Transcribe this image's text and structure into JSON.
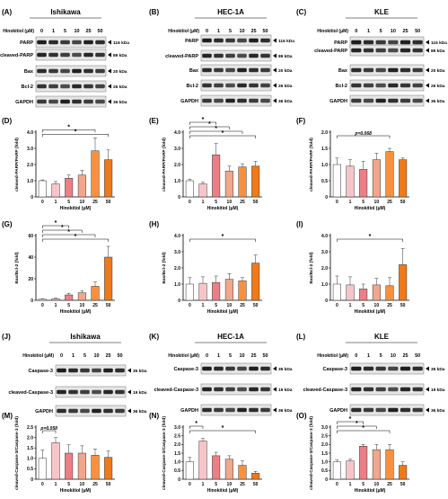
{
  "blot_panels": [
    {
      "letter": "(A)",
      "cell": "Ishikawa",
      "treatment_label": "Hinokitiol (μM)",
      "doses": [
        "0",
        "1",
        "5",
        "10",
        "25",
        "50"
      ],
      "rows": [
        {
          "label": "PARP",
          "size": "116 kDa"
        },
        {
          "label": "cleaved-PARP",
          "size": "89 kDa"
        },
        {
          "label": "Bax",
          "size": "20 kDa"
        },
        {
          "label": "Bcl-2",
          "size": "26 kDa"
        },
        {
          "label": "GAPDH",
          "size": "36 kDa"
        }
      ]
    },
    {
      "letter": "(B)",
      "cell": "HEC-1A",
      "treatment_label": "Hinokitiol (μM)",
      "doses": [
        "0",
        "1",
        "5",
        "10",
        "25",
        "50"
      ],
      "rows": [
        {
          "label": "PARP",
          "size": "116 kDa"
        },
        {
          "label": "cleaved-PARP",
          "size": "89 kDa"
        },
        {
          "label": "Bax",
          "size": "20 kDa"
        },
        {
          "label": "Bcl-2",
          "size": "26 kDa"
        },
        {
          "label": "GAPDH",
          "size": "36 kDa"
        }
      ]
    },
    {
      "letter": "(C)",
      "cell": "KLE",
      "treatment_label": "Hinokitiol (μM)",
      "doses": [
        "0",
        "1",
        "5",
        "10",
        "25",
        "50"
      ],
      "rows": [
        {
          "label": "PARP",
          "size": "116 kDa"
        },
        {
          "label": "cleaved-PARP",
          "size": "89 kDa"
        },
        {
          "label": "Bax",
          "size": "20 kDa"
        },
        {
          "label": "Bcl-2",
          "size": "26 kDa"
        },
        {
          "label": "GAPDH",
          "size": "36 kDa"
        }
      ]
    },
    {
      "letter": "(J)",
      "cell": "Ishikawa",
      "treatment_label": "Hinokitiol (μM)",
      "doses": [
        "0",
        "1",
        "5",
        "10",
        "25",
        "50"
      ],
      "rows": [
        {
          "label": "Caspase-3",
          "size": "35 kDa"
        },
        {
          "label": "cleaved-Caspase-3",
          "size": "19 kDa"
        },
        {
          "label": "GAPDH",
          "size": "36 kDa"
        }
      ]
    },
    {
      "letter": "(K)",
      "cell": "HEC-1A",
      "treatment_label": "Hinokitiol (μM)",
      "doses": [
        "0",
        "1",
        "5",
        "10",
        "25",
        "50"
      ],
      "rows": [
        {
          "label": "Caspase-3",
          "size": "35 kDa"
        },
        {
          "label": "cleaved-Caspase-3",
          "size": "19 kDa"
        },
        {
          "label": "GAPDH",
          "size": "36 kDa"
        }
      ]
    },
    {
      "letter": "(L)",
      "cell": "KLE",
      "treatment_label": "Hinokitiol (μM)",
      "doses": [
        "0",
        "1",
        "5",
        "10",
        "25",
        "50"
      ],
      "rows": [
        {
          "label": "Caspase-3",
          "size": "35 kDa"
        },
        {
          "label": "cleaved-Caspase-3",
          "size": "19 kDa"
        },
        {
          "label": "GAPDH",
          "size": "36 kDa"
        }
      ]
    }
  ],
  "colors": {
    "bars": [
      "#ffffff",
      "#f7c5c8",
      "#ec7f86",
      "#f2a68c",
      "#f7913f",
      "#ef7a1a"
    ],
    "axis": "#000000",
    "text": "#000000"
  },
  "chart_data": [
    {
      "letter": "(D)",
      "type": "bar",
      "ylabel": "cleaved-PARP/PARP (fold)",
      "xlabel": "Hinokitiol (μM)",
      "categories": [
        "0",
        "1",
        "5",
        "10",
        "25",
        "50"
      ],
      "values": [
        1.0,
        0.8,
        1.15,
        1.35,
        2.85,
        2.3
      ],
      "errors": [
        0.05,
        0.15,
        0.2,
        0.3,
        0.8,
        0.6
      ],
      "ylim": [
        0,
        4
      ],
      "yticks": [
        "0",
        "1.0",
        "2.0",
        "3.0",
        "4.0"
      ],
      "brackets": [
        {
          "from": 0,
          "to": 4,
          "label": "*",
          "level": 1
        },
        {
          "from": 0,
          "to": 5,
          "label": "*",
          "level": 2
        }
      ]
    },
    {
      "letter": "(E)",
      "type": "bar",
      "ylabel": "cleaved-PARP/PARP (fold)",
      "xlabel": "Hinokitiol (μM)",
      "categories": [
        "0",
        "1",
        "5",
        "10",
        "25",
        "50"
      ],
      "values": [
        1.0,
        0.8,
        2.6,
        1.6,
        1.85,
        1.9
      ],
      "errors": [
        0.1,
        0.1,
        0.7,
        0.3,
        0.2,
        0.3
      ],
      "ylim": [
        0,
        4
      ],
      "yticks": [
        "0",
        "1.0",
        "2.0",
        "3.0",
        "4.0"
      ],
      "brackets": [
        {
          "from": 0,
          "to": 2,
          "label": "*",
          "level": 1
        },
        {
          "from": 0,
          "to": 3,
          "label": "*",
          "level": 2
        },
        {
          "from": 0,
          "to": 4,
          "label": "*",
          "level": 3
        },
        {
          "from": 0,
          "to": 5,
          "label": "*",
          "level": 4
        }
      ]
    },
    {
      "letter": "(F)",
      "type": "bar",
      "ylabel": "cleaved-PARP/PARP (fold)",
      "xlabel": "Hinokitiol (μM)",
      "categories": [
        "0",
        "1",
        "5",
        "10",
        "25",
        "50"
      ],
      "values": [
        1.0,
        0.95,
        0.85,
        1.15,
        1.4,
        1.15
      ],
      "errors": [
        0.2,
        0.2,
        0.25,
        0.2,
        0.1,
        0.05
      ],
      "ylim": [
        0,
        2
      ],
      "yticks": [
        "0",
        "0.5",
        "1.0",
        "1.5",
        "2.0"
      ],
      "brackets": [
        {
          "from": 0,
          "to": 4,
          "label": "p=0.068",
          "level": 1
        }
      ]
    },
    {
      "letter": "(G)",
      "type": "bar",
      "ylabel": "Bax/Bcl-2 (fold)",
      "xlabel": "Hinokitiol (μM)",
      "categories": [
        "0",
        "1",
        "5",
        "10",
        "25",
        "50"
      ],
      "values": [
        1.0,
        1.5,
        5.0,
        7.0,
        13.0,
        40.0
      ],
      "errors": [
        0.3,
        0.5,
        1.5,
        2.0,
        4.0,
        10.0
      ],
      "ylim": [
        0,
        60
      ],
      "yticks": [
        "0",
        "20",
        "40",
        "60"
      ],
      "brackets": [
        {
          "from": 0,
          "to": 2,
          "label": "*",
          "level": 1
        },
        {
          "from": 0,
          "to": 3,
          "label": "*",
          "level": 2
        },
        {
          "from": 0,
          "to": 4,
          "label": "*",
          "level": 3
        },
        {
          "from": 0,
          "to": 5,
          "label": "*",
          "level": 4
        }
      ]
    },
    {
      "letter": "(H)",
      "type": "bar",
      "ylabel": "Bax/Bcl-2 (fold)",
      "xlabel": "Hinokitiol (μM)",
      "categories": [
        "0",
        "1",
        "5",
        "10",
        "25",
        "50"
      ],
      "values": [
        1.0,
        1.05,
        1.1,
        1.3,
        1.2,
        2.3
      ],
      "errors": [
        0.4,
        0.4,
        0.4,
        0.35,
        0.2,
        0.5
      ],
      "ylim": [
        0,
        4
      ],
      "yticks": [
        "0",
        "1.0",
        "2.0",
        "3.0",
        "4.0"
      ],
      "brackets": [
        {
          "from": 0,
          "to": 5,
          "label": "*",
          "level": 1
        }
      ]
    },
    {
      "letter": "(I)",
      "type": "bar",
      "ylabel": "Bax/Bcl-2 (fold)",
      "xlabel": "Hinokitiol (μM)",
      "categories": [
        "0",
        "1",
        "5",
        "10",
        "25",
        "50"
      ],
      "values": [
        1.0,
        0.95,
        0.7,
        0.95,
        0.9,
        2.2
      ],
      "errors": [
        0.5,
        0.5,
        0.3,
        0.4,
        0.5,
        1.0
      ],
      "ylim": [
        0,
        4
      ],
      "yticks": [
        "0",
        "1.0",
        "2.0",
        "3.0",
        "4.0"
      ],
      "brackets": [
        {
          "from": 0,
          "to": 5,
          "label": "*",
          "level": 1
        }
      ]
    },
    {
      "letter": "(M)",
      "type": "bar",
      "ylabel": "cleaved-Caspase-3/Caspase-3 (fold)",
      "xlabel": "Hinokitiol (μM)",
      "categories": [
        "0",
        "1",
        "5",
        "10",
        "25",
        "50"
      ],
      "values": [
        1.0,
        1.75,
        1.25,
        1.25,
        1.15,
        1.05
      ],
      "errors": [
        0.4,
        0.25,
        0.4,
        0.35,
        0.3,
        0.3
      ],
      "ylim": [
        0,
        2.5
      ],
      "yticks": [
        "0",
        "0.5",
        "1.0",
        "1.5",
        "2.0",
        "2.5"
      ],
      "brackets": [
        {
          "from": 0,
          "to": 1,
          "label": "p=0.058",
          "level": 1
        }
      ]
    },
    {
      "letter": "(N)",
      "type": "bar",
      "ylabel": "cleaved-Caspase-3/Caspase-3 (fold)",
      "xlabel": "Hinokitiol (μM)",
      "categories": [
        "0",
        "1",
        "5",
        "10",
        "25",
        "50"
      ],
      "values": [
        1.0,
        2.2,
        1.35,
        1.15,
        0.8,
        0.35
      ],
      "errors": [
        0.25,
        0.15,
        0.2,
        0.2,
        0.25,
        0.1
      ],
      "ylim": [
        0,
        3.0
      ],
      "yticks": [
        "0",
        "0.5",
        "1.0",
        "1.5",
        "2.0",
        "2.5",
        "3.0"
      ],
      "brackets": [
        {
          "from": 0,
          "to": 1,
          "label": "*",
          "level": 1
        },
        {
          "from": 0,
          "to": 5,
          "label": "*",
          "level": 2
        }
      ]
    },
    {
      "letter": "(O)",
      "type": "bar",
      "ylabel": "cleaved-Caspase-3/Caspase-3 (fold)",
      "xlabel": "Hinokitiol (μM)",
      "categories": [
        "0",
        "1",
        "5",
        "10",
        "25",
        "50"
      ],
      "values": [
        1.0,
        1.05,
        1.9,
        1.7,
        1.7,
        0.8
      ],
      "errors": [
        0.1,
        0.1,
        0.1,
        0.3,
        0.3,
        0.2
      ],
      "ylim": [
        0,
        3.0
      ],
      "yticks": [
        "0",
        "0.5",
        "1.0",
        "1.5",
        "2.0",
        "2.5",
        "3.0"
      ],
      "brackets": [
        {
          "from": 0,
          "to": 2,
          "label": "*",
          "level": 1
        },
        {
          "from": 0,
          "to": 3,
          "label": "*",
          "level": 2
        },
        {
          "from": 0,
          "to": 4,
          "label": "*",
          "level": 3
        }
      ]
    }
  ]
}
